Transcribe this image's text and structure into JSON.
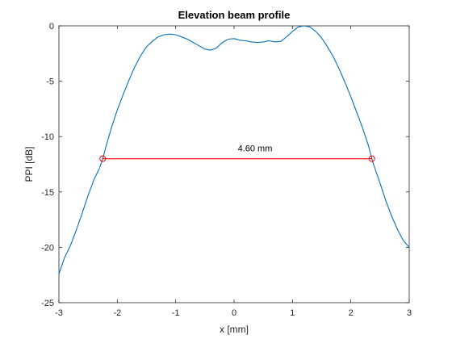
{
  "chart_data": {
    "type": "line",
    "title": "Elevation beam profile",
    "xlabel": "x [mm]",
    "ylabel": "PPI [dB]",
    "xlim": [
      -3,
      3
    ],
    "ylim": [
      -25,
      0
    ],
    "xticks": [
      -3,
      -2,
      -1,
      0,
      1,
      2,
      3
    ],
    "yticks": [
      -25,
      -20,
      -15,
      -10,
      -5,
      0
    ],
    "xtick_labels": [
      "-3",
      "-2",
      "-1",
      "0",
      "1",
      "2",
      "3"
    ],
    "ytick_labels": [
      "-25",
      "-20",
      "-15",
      "-10",
      "-5",
      "0"
    ],
    "grid": false,
    "series": [
      {
        "color": "#0072BD",
        "x": [
          -3.0,
          -2.9,
          -2.8,
          -2.7,
          -2.6,
          -2.5,
          -2.4,
          -2.3,
          -2.25,
          -2.2,
          -2.1,
          -2.0,
          -1.9,
          -1.8,
          -1.7,
          -1.6,
          -1.5,
          -1.4,
          -1.3,
          -1.2,
          -1.1,
          -1.0,
          -0.9,
          -0.8,
          -0.7,
          -0.6,
          -0.5,
          -0.4,
          -0.3,
          -0.2,
          -0.1,
          0.0,
          0.1,
          0.2,
          0.3,
          0.4,
          0.5,
          0.6,
          0.7,
          0.8,
          0.9,
          1.0,
          1.1,
          1.2,
          1.3,
          1.4,
          1.5,
          1.6,
          1.7,
          1.8,
          1.9,
          2.0,
          2.1,
          2.2,
          2.3,
          2.36,
          2.4,
          2.5,
          2.6,
          2.7,
          2.8,
          2.9,
          3.0
        ],
        "y": [
          -22.4,
          -20.9,
          -19.8,
          -18.4,
          -16.9,
          -15.3,
          -13.9,
          -12.8,
          -12.0,
          -11.0,
          -9.2,
          -7.6,
          -6.2,
          -4.9,
          -3.7,
          -2.7,
          -1.9,
          -1.4,
          -1.0,
          -0.8,
          -0.75,
          -0.8,
          -1.0,
          -1.2,
          -1.5,
          -1.8,
          -2.1,
          -2.2,
          -2.0,
          -1.5,
          -1.2,
          -1.15,
          -1.3,
          -1.35,
          -1.45,
          -1.5,
          -1.45,
          -1.35,
          -1.45,
          -1.4,
          -1.0,
          -0.5,
          -0.1,
          0.0,
          -0.1,
          -0.5,
          -1.1,
          -1.9,
          -2.8,
          -3.9,
          -5.1,
          -6.4,
          -7.8,
          -9.2,
          -10.8,
          -12.0,
          -12.7,
          -14.2,
          -15.8,
          -17.2,
          -18.4,
          -19.4,
          -20.0
        ]
      }
    ],
    "annotation": {
      "text": "4.60 mm",
      "color": "#FF0000",
      "x": [
        -2.25,
        2.36
      ],
      "y": [
        -12,
        -12
      ]
    }
  }
}
